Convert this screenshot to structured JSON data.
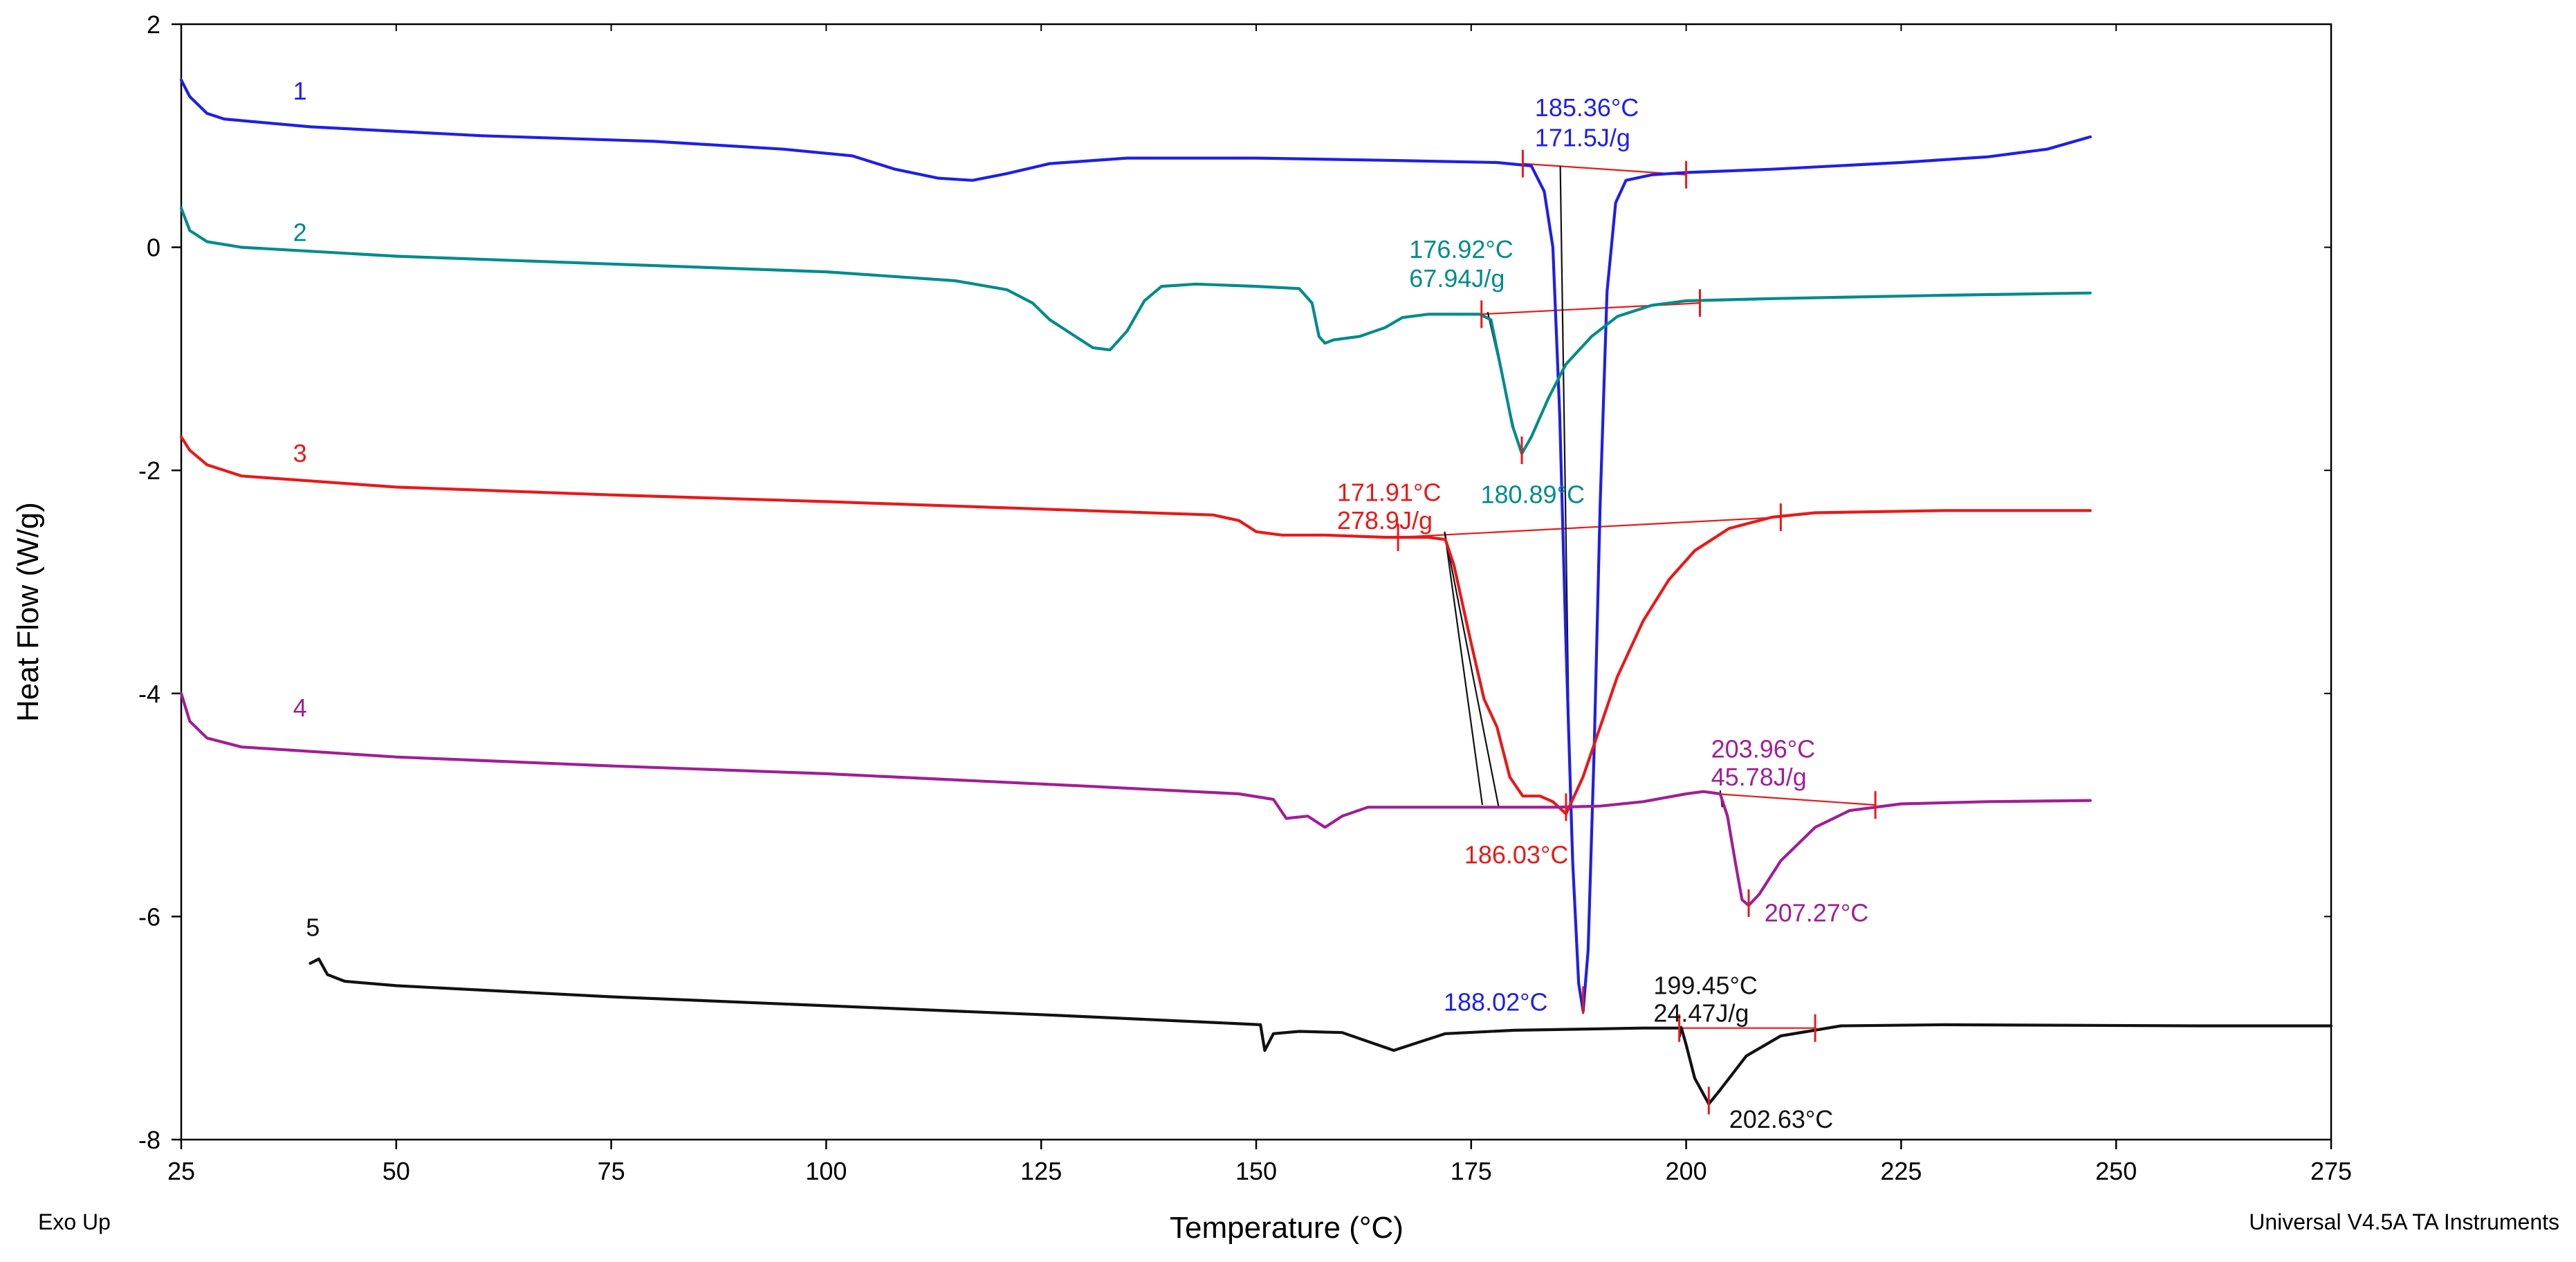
{
  "chart_data": {
    "type": "line",
    "title": "",
    "xlabel": "Temperature (°C)",
    "ylabel": "Heat Flow (W/g)",
    "xlim": [
      25,
      275
    ],
    "ylim": [
      -8,
      2
    ],
    "xticks": [
      25,
      50,
      75,
      100,
      125,
      150,
      175,
      200,
      225,
      250,
      275
    ],
    "yticks": [
      -8,
      -6,
      -4,
      -2,
      0,
      2
    ],
    "grid": false,
    "footer_left": "Exo Up",
    "footer_right": "Universal V4.5A TA Instruments",
    "series": [
      {
        "name": "1",
        "color": "#1f1fe6",
        "label_at": [
          38,
          1.4
        ],
        "points": [
          [
            25,
            1.5
          ],
          [
            26,
            1.35
          ],
          [
            28,
            1.2
          ],
          [
            30,
            1.15
          ],
          [
            40,
            1.08
          ],
          [
            60,
            1.0
          ],
          [
            80,
            0.95
          ],
          [
            95,
            0.88
          ],
          [
            103,
            0.82
          ],
          [
            108,
            0.7
          ],
          [
            113,
            0.62
          ],
          [
            117,
            0.6
          ],
          [
            121,
            0.66
          ],
          [
            126,
            0.75
          ],
          [
            135,
            0.8
          ],
          [
            150,
            0.8
          ],
          [
            165,
            0.78
          ],
          [
            178,
            0.76
          ],
          [
            182,
            0.73
          ],
          [
            183.5,
            0.5
          ],
          [
            184.5,
            0.0
          ],
          [
            185.3,
            -1.5
          ],
          [
            186,
            -3.5
          ],
          [
            186.8,
            -5.5
          ],
          [
            187.5,
            -6.6
          ],
          [
            188.02,
            -6.85
          ],
          [
            188.6,
            -6.3
          ],
          [
            189.3,
            -4.5
          ],
          [
            190,
            -2.3
          ],
          [
            190.8,
            -0.4
          ],
          [
            191.8,
            0.4
          ],
          [
            193,
            0.6
          ],
          [
            196,
            0.65
          ],
          [
            200,
            0.67
          ],
          [
            210,
            0.7
          ],
          [
            225,
            0.76
          ],
          [
            235,
            0.81
          ],
          [
            242,
            0.88
          ],
          [
            247,
            0.99
          ]
        ]
      },
      {
        "name": "2",
        "color": "#008b8b",
        "label_at": [
          38,
          0.13
        ],
        "points": [
          [
            25,
            0.35
          ],
          [
            26,
            0.15
          ],
          [
            28,
            0.05
          ],
          [
            32,
            0.0
          ],
          [
            50,
            -0.08
          ],
          [
            75,
            -0.15
          ],
          [
            100,
            -0.22
          ],
          [
            115,
            -0.3
          ],
          [
            121,
            -0.38
          ],
          [
            124,
            -0.5
          ],
          [
            126,
            -0.65
          ],
          [
            129,
            -0.8
          ],
          [
            131,
            -0.9
          ],
          [
            133,
            -0.92
          ],
          [
            135,
            -0.75
          ],
          [
            137,
            -0.48
          ],
          [
            139,
            -0.35
          ],
          [
            143,
            -0.33
          ],
          [
            150,
            -0.35
          ],
          [
            155,
            -0.37
          ],
          [
            156.5,
            -0.5
          ],
          [
            157.3,
            -0.8
          ],
          [
            158,
            -0.86
          ],
          [
            159,
            -0.83
          ],
          [
            162,
            -0.8
          ],
          [
            165,
            -0.72
          ],
          [
            167,
            -0.63
          ],
          [
            170,
            -0.6
          ],
          [
            176,
            -0.6
          ],
          [
            177.3,
            -0.65
          ],
          [
            178.5,
            -1.1
          ],
          [
            179.8,
            -1.6
          ],
          [
            180.89,
            -1.85
          ],
          [
            182,
            -1.7
          ],
          [
            184,
            -1.35
          ],
          [
            186,
            -1.05
          ],
          [
            189,
            -0.8
          ],
          [
            192,
            -0.62
          ],
          [
            196,
            -0.52
          ],
          [
            200,
            -0.48
          ],
          [
            210,
            -0.46
          ],
          [
            230,
            -0.43
          ],
          [
            247,
            -0.41
          ]
        ]
      },
      {
        "name": "3",
        "color": "#e81919",
        "label_at": [
          38,
          -1.85
        ],
        "points": [
          [
            25,
            -1.7
          ],
          [
            26,
            -1.82
          ],
          [
            28,
            -1.95
          ],
          [
            32,
            -2.05
          ],
          [
            50,
            -2.15
          ],
          [
            75,
            -2.22
          ],
          [
            100,
            -2.28
          ],
          [
            130,
            -2.36
          ],
          [
            145,
            -2.4
          ],
          [
            148,
            -2.45
          ],
          [
            150,
            -2.55
          ],
          [
            153,
            -2.58
          ],
          [
            158,
            -2.58
          ],
          [
            165,
            -2.6
          ],
          [
            170,
            -2.6
          ],
          [
            172,
            -2.62
          ],
          [
            173,
            -2.85
          ],
          [
            175,
            -3.55
          ],
          [
            176.5,
            -4.05
          ],
          [
            178,
            -4.3
          ],
          [
            179.5,
            -4.75
          ],
          [
            181,
            -4.92
          ],
          [
            183,
            -4.92
          ],
          [
            184.5,
            -4.97
          ],
          [
            186.03,
            -5.08
          ],
          [
            188,
            -4.75
          ],
          [
            190,
            -4.3
          ],
          [
            192,
            -3.85
          ],
          [
            195,
            -3.35
          ],
          [
            198,
            -2.98
          ],
          [
            201,
            -2.72
          ],
          [
            205,
            -2.52
          ],
          [
            210,
            -2.42
          ],
          [
            215,
            -2.38
          ],
          [
            230,
            -2.36
          ],
          [
            247,
            -2.36
          ]
        ]
      },
      {
        "name": "4",
        "color": "#a01e96",
        "label_at": [
          38,
          -4.13
        ],
        "points": [
          [
            25,
            -4.0
          ],
          [
            26,
            -4.25
          ],
          [
            28,
            -4.4
          ],
          [
            32,
            -4.48
          ],
          [
            50,
            -4.57
          ],
          [
            75,
            -4.65
          ],
          [
            100,
            -4.72
          ],
          [
            130,
            -4.83
          ],
          [
            148,
            -4.9
          ],
          [
            152,
            -4.95
          ],
          [
            153.5,
            -5.12
          ],
          [
            156,
            -5.1
          ],
          [
            158,
            -5.2
          ],
          [
            160,
            -5.1
          ],
          [
            163,
            -5.02
          ],
          [
            170,
            -5.02
          ],
          [
            180,
            -5.02
          ],
          [
            185,
            -5.02
          ],
          [
            190,
            -5.01
          ],
          [
            195,
            -4.97
          ],
          [
            200,
            -4.9
          ],
          [
            202,
            -4.88
          ],
          [
            203.96,
            -4.9
          ],
          [
            204.8,
            -5.1
          ],
          [
            205.8,
            -5.55
          ],
          [
            206.5,
            -5.85
          ],
          [
            207.27,
            -5.9
          ],
          [
            208.5,
            -5.8
          ],
          [
            211,
            -5.5
          ],
          [
            215,
            -5.2
          ],
          [
            219,
            -5.05
          ],
          [
            225,
            -4.99
          ],
          [
            235,
            -4.97
          ],
          [
            247,
            -4.96
          ]
        ]
      },
      {
        "name": "5",
        "color": "#111111",
        "label_at": [
          39.5,
          -6.1
        ],
        "points": [
          [
            40,
            -6.42
          ],
          [
            41,
            -6.38
          ],
          [
            42,
            -6.52
          ],
          [
            44,
            -6.58
          ],
          [
            50,
            -6.62
          ],
          [
            75,
            -6.72
          ],
          [
            100,
            -6.8
          ],
          [
            125,
            -6.88
          ],
          [
            145,
            -6.95
          ],
          [
            150.5,
            -6.97
          ],
          [
            151,
            -7.2
          ],
          [
            152,
            -7.05
          ],
          [
            155,
            -7.03
          ],
          [
            160,
            -7.04
          ],
          [
            163,
            -7.12
          ],
          [
            166,
            -7.2
          ],
          [
            168,
            -7.15
          ],
          [
            172,
            -7.05
          ],
          [
            180,
            -7.02
          ],
          [
            195,
            -7.0
          ],
          [
            199.45,
            -7.0
          ],
          [
            200,
            -7.15
          ],
          [
            201,
            -7.45
          ],
          [
            202.63,
            -7.68
          ],
          [
            204,
            -7.55
          ],
          [
            207,
            -7.25
          ],
          [
            211,
            -7.07
          ],
          [
            218,
            -6.98
          ],
          [
            230,
            -6.97
          ],
          [
            260,
            -6.98
          ],
          [
            275,
            -6.98
          ]
        ]
      }
    ],
    "baselines": [
      {
        "series": "1",
        "from": [
          181,
          0.75
        ],
        "to": [
          200,
          0.65
        ]
      },
      {
        "series": "2",
        "from": [
          176.2,
          -0.6
        ],
        "to": [
          201.6,
          -0.5
        ]
      },
      {
        "series": "3",
        "from": [
          166.5,
          -2.6
        ],
        "to": [
          211,
          -2.42
        ]
      },
      {
        "series": "4",
        "from": [
          203.5,
          -4.9
        ],
        "to": [
          222,
          -5.0
        ]
      },
      {
        "series": "5",
        "from": [
          199.2,
          -7.0
        ],
        "to": [
          215,
          -7.0
        ]
      }
    ],
    "onset_lines": [
      {
        "series": "1",
        "from": [
          185.36,
          0.73
        ],
        "to": [
          186.5,
          -5.0
        ]
      },
      {
        "series": "2",
        "from": [
          176.92,
          -0.58
        ],
        "to": [
          180.2,
          -1.7
        ]
      },
      {
        "series": "3",
        "from": [
          171.91,
          -2.55
        ],
        "to": [
          176.3,
          -5.0
        ]
      },
      {
        "series": "3",
        "from": [
          171.91,
          -2.55
        ],
        "to": [
          178.2,
          -5.02
        ]
      },
      {
        "series": "4",
        "from": [
          203.96,
          -4.87
        ],
        "to": [
          204.2,
          -5.02
        ]
      },
      {
        "series": "5",
        "from": [
          199.45,
          -6.98
        ],
        "to": [
          199.3,
          -7.08
        ]
      }
    ],
    "markers": [
      {
        "series": "1",
        "at": [
          181,
          0.75
        ]
      },
      {
        "series": "1",
        "at": [
          200,
          0.65
        ]
      },
      {
        "series": "1",
        "at": [
          188.02,
          -6.75
        ]
      },
      {
        "series": "2",
        "at": [
          176.2,
          -0.6
        ]
      },
      {
        "series": "2",
        "at": [
          201.6,
          -0.5
        ]
      },
      {
        "series": "2",
        "at": [
          180.89,
          -1.82
        ]
      },
      {
        "series": "3",
        "at": [
          166.5,
          -2.6
        ]
      },
      {
        "series": "3",
        "at": [
          211,
          -2.42
        ]
      },
      {
        "series": "3",
        "at": [
          186.03,
          -5.02
        ]
      },
      {
        "series": "4",
        "at": [
          222,
          -5.0
        ]
      },
      {
        "series": "4",
        "at": [
          207.27,
          -5.88
        ]
      },
      {
        "series": "5",
        "at": [
          199.2,
          -7.0
        ]
      },
      {
        "series": "5",
        "at": [
          215,
          -7.0
        ]
      },
      {
        "series": "5",
        "at": [
          202.63,
          -7.65
        ]
      }
    ],
    "annotations": [
      {
        "series": "1",
        "color": "#1f1fe6",
        "text": "185.36°C",
        "at": [
          182.4,
          1.25
        ]
      },
      {
        "series": "1",
        "color": "#1f1fe6",
        "text": "171.5J/g",
        "at": [
          182.4,
          0.98
        ]
      },
      {
        "series": "2",
        "color": "#008b8b",
        "text": "176.92°C",
        "at": [
          167.8,
          -0.02
        ]
      },
      {
        "series": "2",
        "color": "#008b8b",
        "text": "67.94J/g",
        "at": [
          167.8,
          -0.28
        ]
      },
      {
        "series": "2",
        "color": "#008b8b",
        "text": "180.89°C",
        "at": [
          176.1,
          -2.22
        ]
      },
      {
        "series": "3",
        "color": "#e81919",
        "text": "171.91°C",
        "at": [
          159.4,
          -2.2
        ]
      },
      {
        "series": "3",
        "color": "#e81919",
        "text": "278.9J/g",
        "at": [
          159.4,
          -2.45
        ]
      },
      {
        "series": "3",
        "color": "#e81919",
        "text": "186.03°C",
        "at": [
          174.2,
          -5.45
        ]
      },
      {
        "series": "4",
        "color": "#a01e96",
        "text": "203.96°C",
        "at": [
          202.9,
          -4.5
        ]
      },
      {
        "series": "4",
        "color": "#a01e96",
        "text": "45.78J/g",
        "at": [
          202.9,
          -4.75
        ]
      },
      {
        "series": "4",
        "color": "#a01e96",
        "text": "207.27°C",
        "at": [
          209.1,
          -5.97
        ]
      },
      {
        "series": "1",
        "color": "#1f1fe6",
        "text": "188.02°C",
        "at": [
          171.8,
          -6.77
        ]
      },
      {
        "series": "5",
        "color": "#111111",
        "text": "199.45°C",
        "at": [
          196.2,
          -6.62
        ]
      },
      {
        "series": "5",
        "color": "#111111",
        "text": "24.47J/g",
        "at": [
          196.2,
          -6.87
        ]
      },
      {
        "series": "5",
        "color": "#111111",
        "text": "202.63°C",
        "at": [
          205,
          -7.82
        ]
      }
    ]
  }
}
